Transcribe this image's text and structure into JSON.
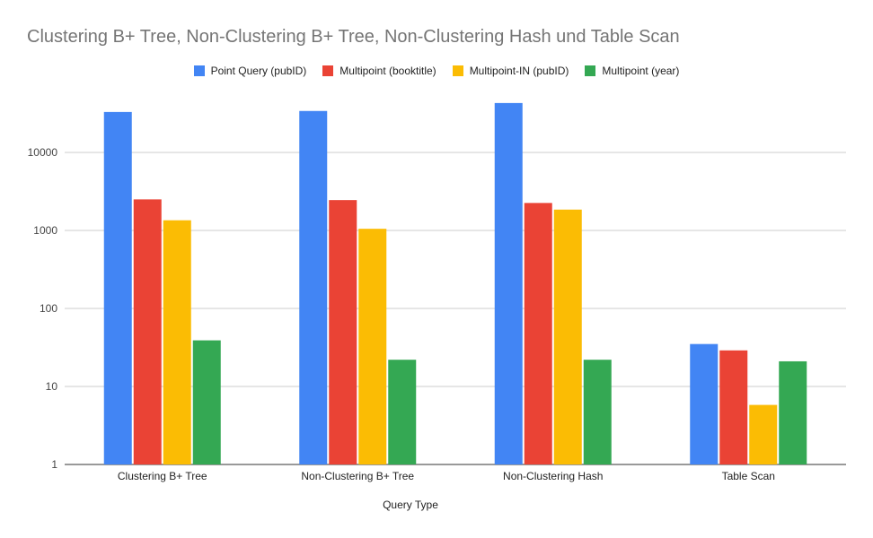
{
  "chart_data": {
    "type": "bar",
    "title": "Clustering B+ Tree, Non-Clustering B+ Tree, Non-Clustering Hash und Table Scan",
    "xlabel": "Query Type",
    "ylabel": "",
    "y_scale": "log",
    "ylim": [
      1,
      100000
    ],
    "y_ticks": [
      "1",
      "10",
      "100",
      "1000",
      "10000"
    ],
    "grid": true,
    "legend_position": "top-center",
    "categories": [
      "Clustering B+ Tree",
      "Non-Clustering B+ Tree",
      "Non-Clustering Hash",
      "Table Scan"
    ],
    "series": [
      {
        "name": "Point Query (pubID)",
        "color": "#4285f4",
        "values": [
          33000,
          34000,
          43000,
          35
        ]
      },
      {
        "name": "Multipoint (booktitle)",
        "color": "#ea4335",
        "values": [
          2500,
          2450,
          2250,
          29
        ]
      },
      {
        "name": "Multipoint-IN (pubID)",
        "color": "#fbbc04",
        "values": [
          1350,
          1050,
          1850,
          5.8
        ]
      },
      {
        "name": "Multipoint (year)",
        "color": "#34a853",
        "values": [
          39,
          22,
          22,
          21
        ]
      }
    ]
  }
}
